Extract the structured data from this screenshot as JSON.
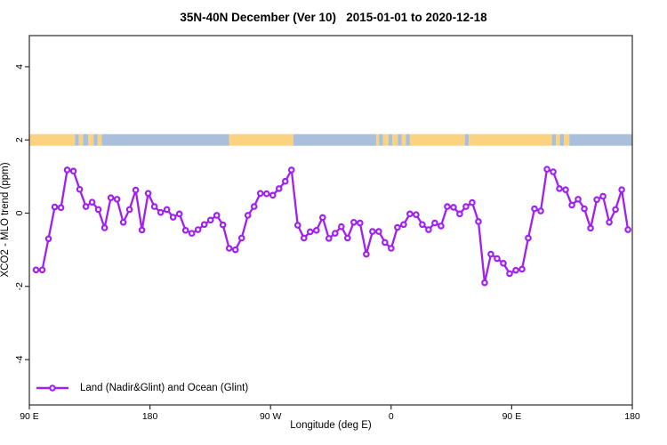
{
  "title": "35N-40N December (Ver 10)   2015-01-01 to 2020-12-18",
  "axes": {
    "x": {
      "label": "Longitude (deg E)",
      "ticks": [
        {
          "lon": 90,
          "label": "90 E"
        },
        {
          "lon": 180,
          "label": "180"
        },
        {
          "lon": 270,
          "label": "90 W"
        },
        {
          "lon": 360,
          "label": "0"
        },
        {
          "lon": 450,
          "label": "90 E"
        },
        {
          "lon": 540,
          "label": "180"
        }
      ]
    },
    "y": {
      "label": "XCO2 - MLO trend (ppm)",
      "ticks": [
        -4,
        -2,
        0,
        2,
        4
      ]
    }
  },
  "legend": {
    "label": "Land (Nadir&Glint) and Ocean (Glint)"
  },
  "colors": {
    "series": "#A020F0",
    "marker_fill": "#ffffff",
    "land": "#FBD27F",
    "ocean": "#A9C0DC",
    "frame": "#2b2b2b",
    "text": "#000000"
  },
  "surface_band": {
    "value": 2.0,
    "note": "land/ocean surface type strip drawn at y = 2 ppm",
    "segments": [
      [
        90,
        124,
        "land"
      ],
      [
        124,
        127,
        "ocean"
      ],
      [
        127,
        130,
        "land"
      ],
      [
        130,
        134,
        "ocean"
      ],
      [
        134,
        138,
        "land"
      ],
      [
        138,
        141,
        "ocean"
      ],
      [
        141,
        144,
        "land"
      ],
      [
        144,
        239,
        "ocean"
      ],
      [
        239,
        287,
        "land"
      ],
      [
        287,
        349,
        "ocean"
      ],
      [
        349,
        351,
        "land"
      ],
      [
        351,
        354,
        "ocean"
      ],
      [
        354,
        358,
        "land"
      ],
      [
        358,
        361,
        "ocean"
      ],
      [
        361,
        365,
        "land"
      ],
      [
        365,
        368,
        "ocean"
      ],
      [
        368,
        371,
        "land"
      ],
      [
        371,
        374,
        "ocean"
      ],
      [
        374,
        415,
        "land"
      ],
      [
        415,
        418,
        "ocean"
      ],
      [
        418,
        480,
        "land"
      ],
      [
        480,
        483,
        "ocean"
      ],
      [
        483,
        486,
        "land"
      ],
      [
        486,
        489,
        "ocean"
      ],
      [
        489,
        493,
        "land"
      ],
      [
        493,
        540,
        "ocean"
      ]
    ]
  },
  "chart_data": {
    "type": "line",
    "title": "35N-40N December (Ver 10)   2015-01-01 to 2020-12-18",
    "xlabel": "Longitude (deg E)",
    "ylabel": "XCO2 - MLO trend (ppm)",
    "xlim": [
      90,
      540
    ],
    "ylim": [
      -5,
      5
    ],
    "grid": false,
    "legend_position": "bottom-left",
    "x_axis_note": "longitude axis wraps: 90E, 180, 90W, 0, 90E, 180",
    "x_start": 95,
    "x_step": 4.65,
    "marker": "open-circle",
    "series": [
      {
        "name": "Land (Nadir&Glint) and Ocean (Glint)",
        "values": [
          -1.55,
          -1.55,
          -0.7,
          0.17,
          0.15,
          1.18,
          1.15,
          0.65,
          0.18,
          0.3,
          0.1,
          -0.4,
          0.42,
          0.38,
          -0.25,
          0.1,
          0.63,
          -0.46,
          0.54,
          0.18,
          0.02,
          0.1,
          -0.11,
          -0.02,
          -0.47,
          -0.55,
          -0.45,
          -0.31,
          -0.19,
          -0.06,
          -0.32,
          -0.96,
          -1.0,
          -0.68,
          -0.06,
          0.18,
          0.54,
          0.53,
          0.49,
          0.67,
          0.87,
          1.18,
          -0.33,
          -0.68,
          -0.51,
          -0.47,
          -0.12,
          -0.69,
          -0.55,
          -0.37,
          -0.68,
          -0.25,
          -0.27,
          -1.12,
          -0.5,
          -0.5,
          -0.8,
          -0.96,
          -0.39,
          -0.31,
          -0.02,
          -0.04,
          -0.31,
          -0.45,
          -0.27,
          -0.35,
          0.18,
          0.16,
          -0.02,
          0.18,
          0.29,
          -0.23,
          -1.9,
          -1.12,
          -1.24,
          -1.37,
          -1.65,
          -1.56,
          -1.53,
          -0.68,
          0.12,
          0.06,
          1.2,
          1.13,
          0.67,
          0.64,
          0.22,
          0.38,
          0.12,
          -0.41,
          0.37,
          0.46,
          -0.25,
          0.1,
          0.64,
          -0.45
        ]
      }
    ]
  }
}
